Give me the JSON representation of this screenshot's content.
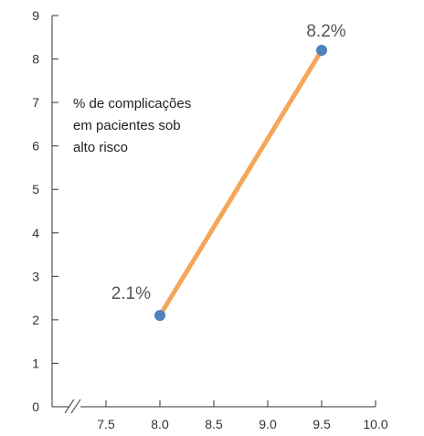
{
  "chart_data": {
    "type": "line",
    "title": "",
    "xlabel": "",
    "ylabel": "",
    "annotation_lines": [
      "% de complicações",
      "em pacientes sob",
      "alto risco"
    ],
    "x_axis_break": true,
    "xlim": [
      7.0,
      10.0
    ],
    "ylim": [
      0,
      9
    ],
    "x_ticks": [
      7.5,
      8.0,
      8.5,
      9.0,
      9.5,
      10.0
    ],
    "x_tick_labels": [
      "7.5",
      "8.0",
      "8.5",
      "9.0",
      "9.5",
      "10.0"
    ],
    "y_ticks": [
      0,
      1,
      2,
      3,
      4,
      5,
      6,
      7,
      8,
      9
    ],
    "y_tick_labels": [
      "0",
      "1",
      "2",
      "3",
      "4",
      "5",
      "6",
      "7",
      "8",
      "9"
    ],
    "grid": false,
    "series": [
      {
        "points": [
          {
            "x": 8.0,
            "y": 2.1,
            "label": "2.1%"
          },
          {
            "x": 9.5,
            "y": 8.2,
            "label": "8.2%"
          }
        ],
        "line_color": "#f4a65a",
        "marker_color": "#4f81bd"
      }
    ]
  }
}
